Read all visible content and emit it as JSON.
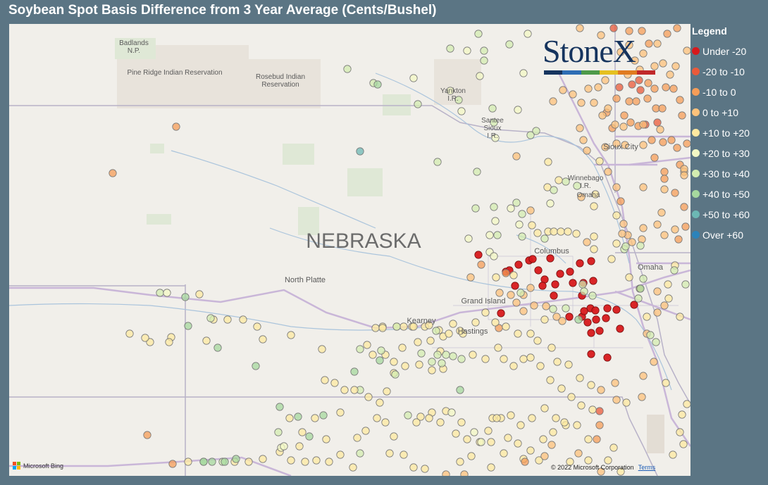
{
  "title": "Soybean Spot Basis Difference from 3 Year Average (Cents/Bushel)",
  "logo": {
    "text": "StoneX",
    "bar_colors": [
      "#16345e",
      "#2e6db4",
      "#4e9a4a",
      "#e5c020",
      "#e07b20",
      "#c0282a"
    ]
  },
  "legend": {
    "title": "Legend",
    "items": [
      {
        "label": "Under -20",
        "color": "#d7191c"
      },
      {
        "label": "-20 to -10",
        "color": "#ea5a3a"
      },
      {
        "label": "-10 to 0",
        "color": "#f69d58"
      },
      {
        "label": "0 to +10",
        "color": "#fdc27b"
      },
      {
        "label": "+10 to +20",
        "color": "#fee9a0"
      },
      {
        "label": "+20 to +30",
        "color": "#f3f8c4"
      },
      {
        "label": "+30 to +40",
        "color": "#d3ecb0"
      },
      {
        "label": "+40 to +50",
        "color": "#a6d89e"
      },
      {
        "label": "+50 to +60",
        "color": "#6cb8b4"
      },
      {
        "label": "Over +60",
        "color": "#2b83ba"
      }
    ]
  },
  "map_labels": {
    "state": "NEBRASKA",
    "badlands": "Badlands\nN.P.",
    "pine_ridge": "Pine Ridge Indian Reservation",
    "rosebud": "Rosebud Indian\nReservation",
    "yankton": "Yankton\nI.R.",
    "santee": "Santee\nSioux\nI.R.",
    "sioux_city": "Sioux City",
    "winnebago": "Winnebago\nI.R.",
    "omaha_ir": "Omaha",
    "omaha": "Omaha",
    "columbus": "Columbus",
    "north_platte": "North Platte",
    "grand_island": "Grand Island",
    "kearney": "Kearney",
    "hastings": "Hastings"
  },
  "copyright": "© 2022 Microsoft Corporation",
  "terms": "Terms",
  "bing": "Microsoft Bing"
}
